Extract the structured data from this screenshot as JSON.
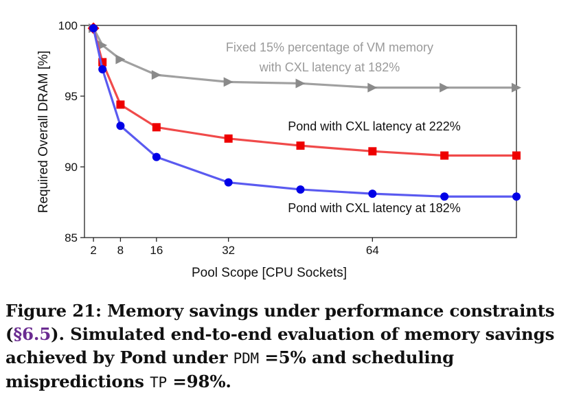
{
  "chart_data": {
    "type": "line",
    "xlabel": "Pool Scope [CPU Sockets]",
    "ylabel": "Required Overall DRAM [%]",
    "xlim": [
      0,
      96
    ],
    "ylim": [
      85,
      100
    ],
    "xticks": [
      2,
      8,
      16,
      32,
      64
    ],
    "yticks": [
      85,
      90,
      95,
      100
    ],
    "grid": false,
    "series": [
      {
        "name": "Fixed 15% percentage of VM memory with CXL latency at 182%",
        "color": "#a0a0a0",
        "marker": "triangle",
        "x": [
          2,
          4,
          8,
          16,
          32,
          48,
          64,
          80,
          96
        ],
        "y": [
          99.8,
          98.6,
          97.6,
          96.5,
          96.0,
          95.9,
          95.6,
          95.6,
          95.6
        ]
      },
      {
        "name": "Pond with CXL latency at 222%",
        "color": "#f04a4a",
        "marker": "square",
        "x": [
          2,
          4,
          8,
          16,
          32,
          48,
          64,
          80,
          96
        ],
        "y": [
          99.8,
          97.4,
          94.4,
          92.8,
          92.0,
          91.5,
          91.1,
          90.8,
          90.8
        ]
      },
      {
        "name": "Pond with CXL latency at 182%",
        "color": "#5a5af0",
        "marker": "circle",
        "x": [
          2,
          4,
          8,
          16,
          32,
          48,
          64,
          80,
          96
        ],
        "y": [
          99.8,
          96.9,
          92.9,
          90.7,
          88.9,
          88.4,
          88.1,
          87.9,
          87.9
        ]
      }
    ],
    "annotations": {
      "gray_line1": "Fixed 15% percentage of VM memory",
      "gray_line2": "with CXL latency at 182%",
      "red": "Pond with CXL latency at 222%",
      "blue": "Pond with CXL latency at 182%"
    }
  },
  "caption": {
    "prefix": "Figure 21: Memory savings under performance constraints (",
    "ref": "§6.5",
    "mid": "). Simulated end-to-end evaluation of memory savings achieved by Pond under ",
    "code1": "PDM",
    "mid2": " =5% and scheduling mispredictions ",
    "code2": "TP",
    "suffix": " =98%."
  }
}
